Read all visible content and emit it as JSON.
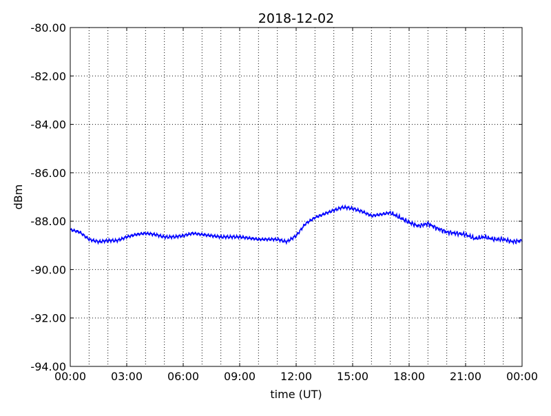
{
  "chart_data": {
    "type": "line",
    "title": "2018-12-02",
    "xlabel": "time (UT)",
    "ylabel": "dBm",
    "xlim": [
      0,
      24
    ],
    "ylim": [
      -94,
      -80
    ],
    "x_tick_labels": [
      "00:00",
      "03:00",
      "06:00",
      "09:00",
      "12:00",
      "15:00",
      "18:00",
      "21:00",
      "00:00"
    ],
    "x_ticks": [
      0,
      3,
      6,
      9,
      12,
      15,
      18,
      21,
      24
    ],
    "y_ticks": [
      -80,
      -82,
      -84,
      -86,
      -88,
      -90,
      -92,
      -94
    ],
    "y_tick_labels": [
      "-80.00",
      "-82.00",
      "-84.00",
      "-86.00",
      "-88.00",
      "-90.00",
      "-92.00",
      "-94.00"
    ],
    "grid": true,
    "line_color": "#0000ff",
    "series": [
      {
        "x_hours": [
          0,
          0.5,
          1,
          1.5,
          2,
          2.5,
          3,
          3.5,
          4,
          4.5,
          5,
          5.5,
          6,
          6.5,
          7,
          7.5,
          8,
          8.5,
          9,
          9.5,
          10,
          10.5,
          11,
          11.5,
          12,
          12.5,
          13,
          13.5,
          14,
          14.5,
          15,
          15.5,
          16,
          16.5,
          17,
          17.5,
          18,
          18.5,
          19,
          19.5,
          20,
          20.5,
          21,
          21.5,
          22,
          22.5,
          23,
          23.5,
          24
        ],
        "values": [
          -88.35,
          -88.45,
          -88.75,
          -88.85,
          -88.8,
          -88.8,
          -88.65,
          -88.55,
          -88.5,
          -88.55,
          -88.65,
          -88.65,
          -88.6,
          -88.5,
          -88.55,
          -88.6,
          -88.65,
          -88.65,
          -88.65,
          -88.7,
          -88.75,
          -88.75,
          -88.75,
          -88.85,
          -88.6,
          -88.1,
          -87.85,
          -87.7,
          -87.55,
          -87.42,
          -87.48,
          -87.6,
          -87.78,
          -87.72,
          -87.65,
          -87.85,
          -88.05,
          -88.2,
          -88.1,
          -88.3,
          -88.45,
          -88.5,
          -88.55,
          -88.72,
          -88.65,
          -88.75,
          -88.75,
          -88.85,
          -88.8
        ]
      }
    ]
  }
}
